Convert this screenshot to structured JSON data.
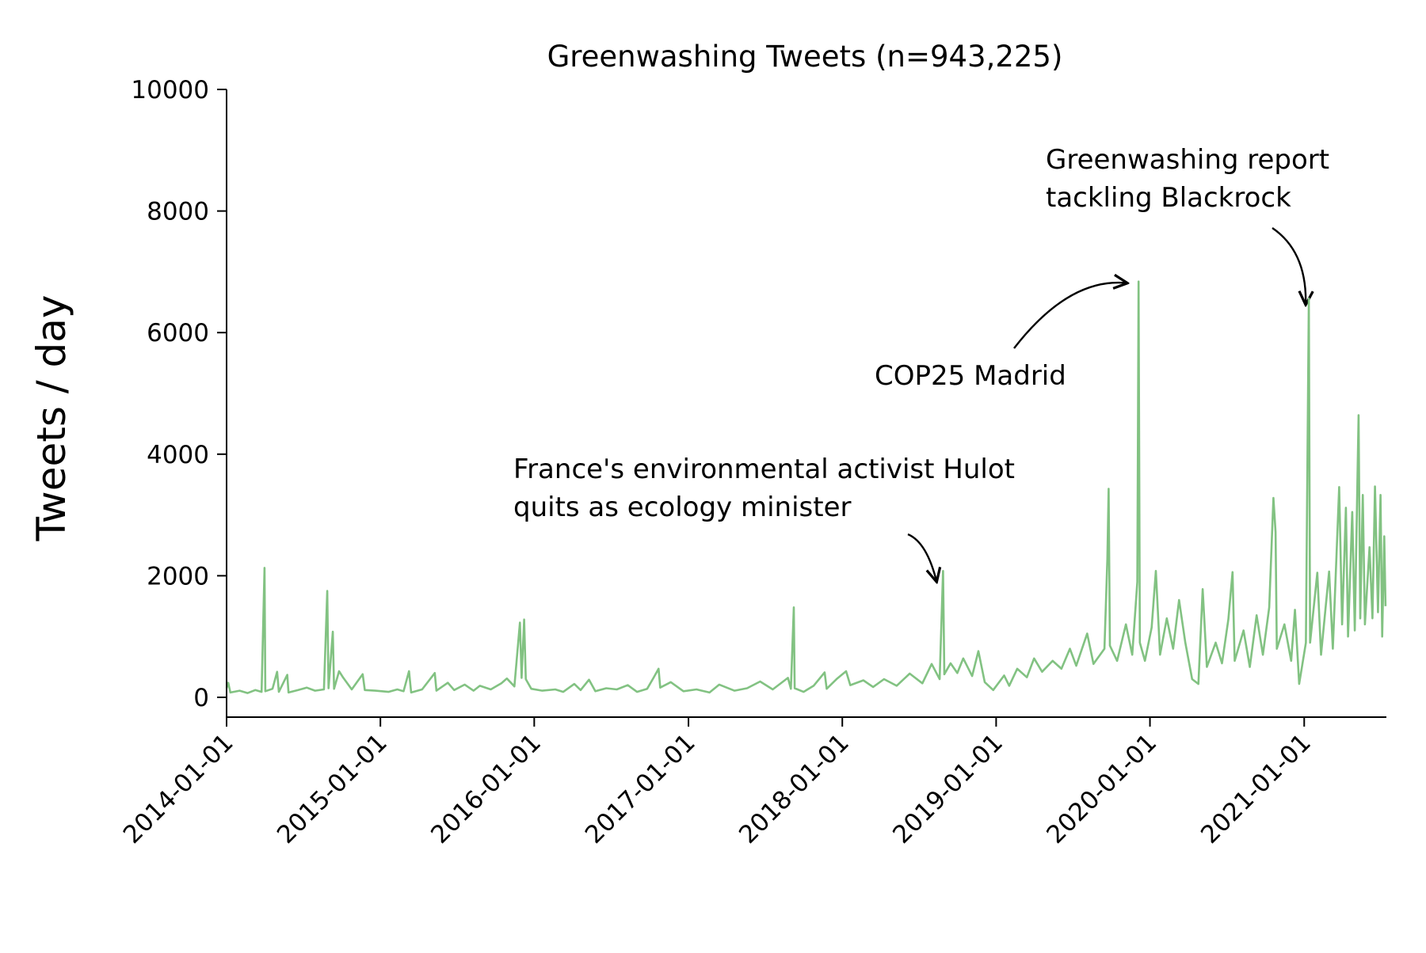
{
  "chart_data": {
    "type": "line",
    "title": "Greenwashing Tweets (n=943,225)",
    "xlabel": "",
    "ylabel": "Tweets / day",
    "xlim": [
      "2014-01-01",
      "2021-07-15"
    ],
    "ylim": [
      0,
      10000
    ],
    "x_ticks": [
      "2014-01-01",
      "2015-01-01",
      "2016-01-01",
      "2017-01-01",
      "2018-01-01",
      "2019-01-01",
      "2020-01-01",
      "2021-01-01"
    ],
    "y_ticks": [
      0,
      2000,
      4000,
      6000,
      8000,
      10000
    ],
    "grid": false,
    "line_color": "#82c282",
    "series": [
      {
        "points": [
          [
            "2014-01-01",
            150
          ],
          [
            "2014-01-05",
            240
          ],
          [
            "2014-01-10",
            80
          ],
          [
            "2014-02-01",
            110
          ],
          [
            "2014-02-20",
            70
          ],
          [
            "2014-03-10",
            120
          ],
          [
            "2014-03-25",
            90
          ],
          [
            "2014-04-01",
            2130
          ],
          [
            "2014-04-03",
            100
          ],
          [
            "2014-04-20",
            140
          ],
          [
            "2014-05-01",
            420
          ],
          [
            "2014-05-05",
            90
          ],
          [
            "2014-05-25",
            370
          ],
          [
            "2014-05-28",
            80
          ],
          [
            "2014-06-20",
            120
          ],
          [
            "2014-07-10",
            160
          ],
          [
            "2014-07-30",
            110
          ],
          [
            "2014-08-20",
            130
          ],
          [
            "2014-08-28",
            1750
          ],
          [
            "2014-08-31",
            150
          ],
          [
            "2014-09-10",
            1080
          ],
          [
            "2014-09-13",
            140
          ],
          [
            "2014-09-25",
            430
          ],
          [
            "2014-10-05",
            320
          ],
          [
            "2014-10-25",
            130
          ],
          [
            "2014-11-20",
            380
          ],
          [
            "2014-11-25",
            120
          ],
          [
            "2014-12-20",
            110
          ],
          [
            "2015-01-20",
            90
          ],
          [
            "2015-02-10",
            130
          ],
          [
            "2015-02-25",
            100
          ],
          [
            "2015-03-10",
            430
          ],
          [
            "2015-03-15",
            80
          ],
          [
            "2015-04-10",
            130
          ],
          [
            "2015-05-10",
            400
          ],
          [
            "2015-05-14",
            110
          ],
          [
            "2015-06-10",
            240
          ],
          [
            "2015-06-25",
            120
          ],
          [
            "2015-07-20",
            210
          ],
          [
            "2015-08-10",
            110
          ],
          [
            "2015-08-25",
            190
          ],
          [
            "2015-09-20",
            130
          ],
          [
            "2015-10-15",
            230
          ],
          [
            "2015-10-28",
            310
          ],
          [
            "2015-11-15",
            180
          ],
          [
            "2015-11-28",
            1230
          ],
          [
            "2015-12-02",
            320
          ],
          [
            "2015-12-08",
            1280
          ],
          [
            "2015-12-12",
            300
          ],
          [
            "2015-12-25",
            140
          ],
          [
            "2016-01-20",
            110
          ],
          [
            "2016-02-20",
            130
          ],
          [
            "2016-03-10",
            90
          ],
          [
            "2016-04-05",
            220
          ],
          [
            "2016-04-20",
            120
          ],
          [
            "2016-05-10",
            290
          ],
          [
            "2016-05-25",
            100
          ],
          [
            "2016-06-20",
            150
          ],
          [
            "2016-07-15",
            130
          ],
          [
            "2016-08-10",
            200
          ],
          [
            "2016-09-01",
            90
          ],
          [
            "2016-09-25",
            140
          ],
          [
            "2016-10-10",
            320
          ],
          [
            "2016-10-22",
            470
          ],
          [
            "2016-10-26",
            160
          ],
          [
            "2016-11-20",
            250
          ],
          [
            "2016-12-20",
            100
          ],
          [
            "2017-01-20",
            130
          ],
          [
            "2017-02-20",
            80
          ],
          [
            "2017-03-15",
            210
          ],
          [
            "2017-04-20",
            110
          ],
          [
            "2017-05-20",
            150
          ],
          [
            "2017-06-20",
            260
          ],
          [
            "2017-07-20",
            130
          ],
          [
            "2017-08-25",
            320
          ],
          [
            "2017-09-01",
            140
          ],
          [
            "2017-09-08",
            1480
          ],
          [
            "2017-09-10",
            150
          ],
          [
            "2017-10-01",
            90
          ],
          [
            "2017-10-25",
            190
          ],
          [
            "2017-11-20",
            410
          ],
          [
            "2017-11-25",
            140
          ],
          [
            "2017-12-20",
            310
          ],
          [
            "2018-01-10",
            430
          ],
          [
            "2018-01-20",
            200
          ],
          [
            "2018-02-20",
            280
          ],
          [
            "2018-03-15",
            170
          ],
          [
            "2018-04-10",
            300
          ],
          [
            "2018-05-10",
            190
          ],
          [
            "2018-06-10",
            390
          ],
          [
            "2018-07-10",
            230
          ],
          [
            "2018-08-01",
            550
          ],
          [
            "2018-08-20",
            300
          ],
          [
            "2018-08-28",
            2080
          ],
          [
            "2018-08-31",
            380
          ],
          [
            "2018-09-15",
            560
          ],
          [
            "2018-10-01",
            400
          ],
          [
            "2018-10-15",
            640
          ],
          [
            "2018-11-05",
            350
          ],
          [
            "2018-11-20",
            760
          ],
          [
            "2018-12-05",
            250
          ],
          [
            "2018-12-25",
            120
          ],
          [
            "2019-01-20",
            360
          ],
          [
            "2019-02-01",
            190
          ],
          [
            "2019-02-20",
            470
          ],
          [
            "2019-03-15",
            330
          ],
          [
            "2019-04-01",
            640
          ],
          [
            "2019-04-20",
            420
          ],
          [
            "2019-05-15",
            600
          ],
          [
            "2019-06-05",
            470
          ],
          [
            "2019-06-25",
            800
          ],
          [
            "2019-07-10",
            520
          ],
          [
            "2019-08-05",
            1050
          ],
          [
            "2019-08-20",
            550
          ],
          [
            "2019-09-15",
            800
          ],
          [
            "2019-09-22",
            2280
          ],
          [
            "2019-09-25",
            3430
          ],
          [
            "2019-09-28",
            850
          ],
          [
            "2019-10-15",
            600
          ],
          [
            "2019-11-05",
            1200
          ],
          [
            "2019-11-20",
            700
          ],
          [
            "2019-12-02",
            1900
          ],
          [
            "2019-12-05",
            6840
          ],
          [
            "2019-12-08",
            900
          ],
          [
            "2019-12-20",
            600
          ],
          [
            "2020-01-05",
            1150
          ],
          [
            "2020-01-15",
            2080
          ],
          [
            "2020-01-25",
            700
          ],
          [
            "2020-02-10",
            1300
          ],
          [
            "2020-02-25",
            800
          ],
          [
            "2020-03-10",
            1600
          ],
          [
            "2020-03-25",
            900
          ],
          [
            "2020-04-10",
            300
          ],
          [
            "2020-04-25",
            220
          ],
          [
            "2020-05-05",
            1780
          ],
          [
            "2020-05-15",
            500
          ],
          [
            "2020-06-05",
            900
          ],
          [
            "2020-06-20",
            560
          ],
          [
            "2020-07-05",
            1280
          ],
          [
            "2020-07-15",
            2060
          ],
          [
            "2020-07-20",
            600
          ],
          [
            "2020-08-10",
            1100
          ],
          [
            "2020-08-25",
            500
          ],
          [
            "2020-09-10",
            1350
          ],
          [
            "2020-09-25",
            700
          ],
          [
            "2020-10-10",
            1480
          ],
          [
            "2020-10-20",
            3280
          ],
          [
            "2020-10-25",
            2720
          ],
          [
            "2020-10-28",
            800
          ],
          [
            "2020-11-15",
            1200
          ],
          [
            "2020-12-01",
            600
          ],
          [
            "2020-12-10",
            1440
          ],
          [
            "2020-12-20",
            220
          ],
          [
            "2021-01-05",
            900
          ],
          [
            "2021-01-12",
            6560
          ],
          [
            "2021-01-15",
            900
          ],
          [
            "2021-02-01",
            2050
          ],
          [
            "2021-02-10",
            700
          ],
          [
            "2021-03-01",
            2070
          ],
          [
            "2021-03-10",
            800
          ],
          [
            "2021-03-25",
            3460
          ],
          [
            "2021-04-01",
            1200
          ],
          [
            "2021-04-10",
            3120
          ],
          [
            "2021-04-15",
            1000
          ],
          [
            "2021-04-25",
            3050
          ],
          [
            "2021-05-01",
            1100
          ],
          [
            "2021-05-10",
            4640
          ],
          [
            "2021-05-14",
            1300
          ],
          [
            "2021-05-20",
            3330
          ],
          [
            "2021-05-25",
            1200
          ],
          [
            "2021-06-05",
            2470
          ],
          [
            "2021-06-12",
            1300
          ],
          [
            "2021-06-18",
            3470
          ],
          [
            "2021-06-25",
            1400
          ],
          [
            "2021-07-01",
            3330
          ],
          [
            "2021-07-05",
            1000
          ],
          [
            "2021-07-10",
            2650
          ],
          [
            "2021-07-13",
            1500
          ]
        ]
      }
    ],
    "annotations": [
      {
        "lines": [
          "France's environmental activist Hulot",
          "quits as ecology minister"
        ],
        "target": [
          "2018-08-28",
          2080
        ]
      },
      {
        "lines": [
          "COP25 Madrid"
        ],
        "target": [
          "2019-12-05",
          6840
        ]
      },
      {
        "lines": [
          "Greenwashing report",
          "tackling Blackrock"
        ],
        "target": [
          "2021-01-12",
          6560
        ]
      }
    ]
  }
}
